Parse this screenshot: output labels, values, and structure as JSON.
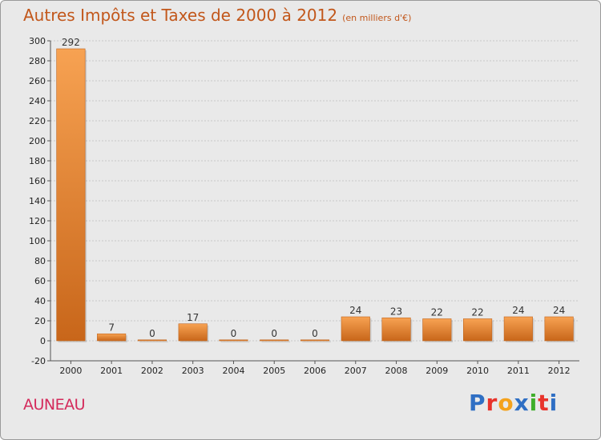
{
  "chart_data": {
    "type": "bar",
    "title": "Autres Impôts et Taxes de 2000 à 2012",
    "subtitle": "(en milliers d'€)",
    "categories": [
      "2000",
      "2001",
      "2002",
      "2003",
      "2004",
      "2005",
      "2006",
      "2007",
      "2008",
      "2009",
      "2010",
      "2011",
      "2012"
    ],
    "values": [
      292,
      7,
      0,
      17,
      0,
      0,
      0,
      24,
      23,
      22,
      22,
      24,
      24
    ],
    "data_labels": [
      "292",
      "7",
      "0",
      "17",
      "0",
      "0",
      "0",
      "24",
      "23",
      "22",
      "22",
      "24",
      "24"
    ],
    "ylim": [
      -20,
      300
    ],
    "yticks": [
      -20,
      0,
      20,
      40,
      60,
      80,
      100,
      120,
      140,
      160,
      180,
      200,
      220,
      240,
      260,
      280,
      300
    ],
    "ytick_labels": [
      "-20",
      "0",
      "20",
      "40",
      "60",
      "80",
      "100",
      "120",
      "140",
      "160",
      "180",
      "200",
      "220",
      "240",
      "260",
      "280",
      "300"
    ],
    "grid": true,
    "bar_color": "#f28c2e",
    "xlabel": "",
    "ylabel": ""
  },
  "commune": "AUNEAU",
  "brand": "Proxiti",
  "brand_colors": [
    "#2f6fc4",
    "#e8332b",
    "#f4a21c",
    "#2f6fc4",
    "#3fae2a",
    "#e8332b",
    "#2f6fc4"
  ]
}
